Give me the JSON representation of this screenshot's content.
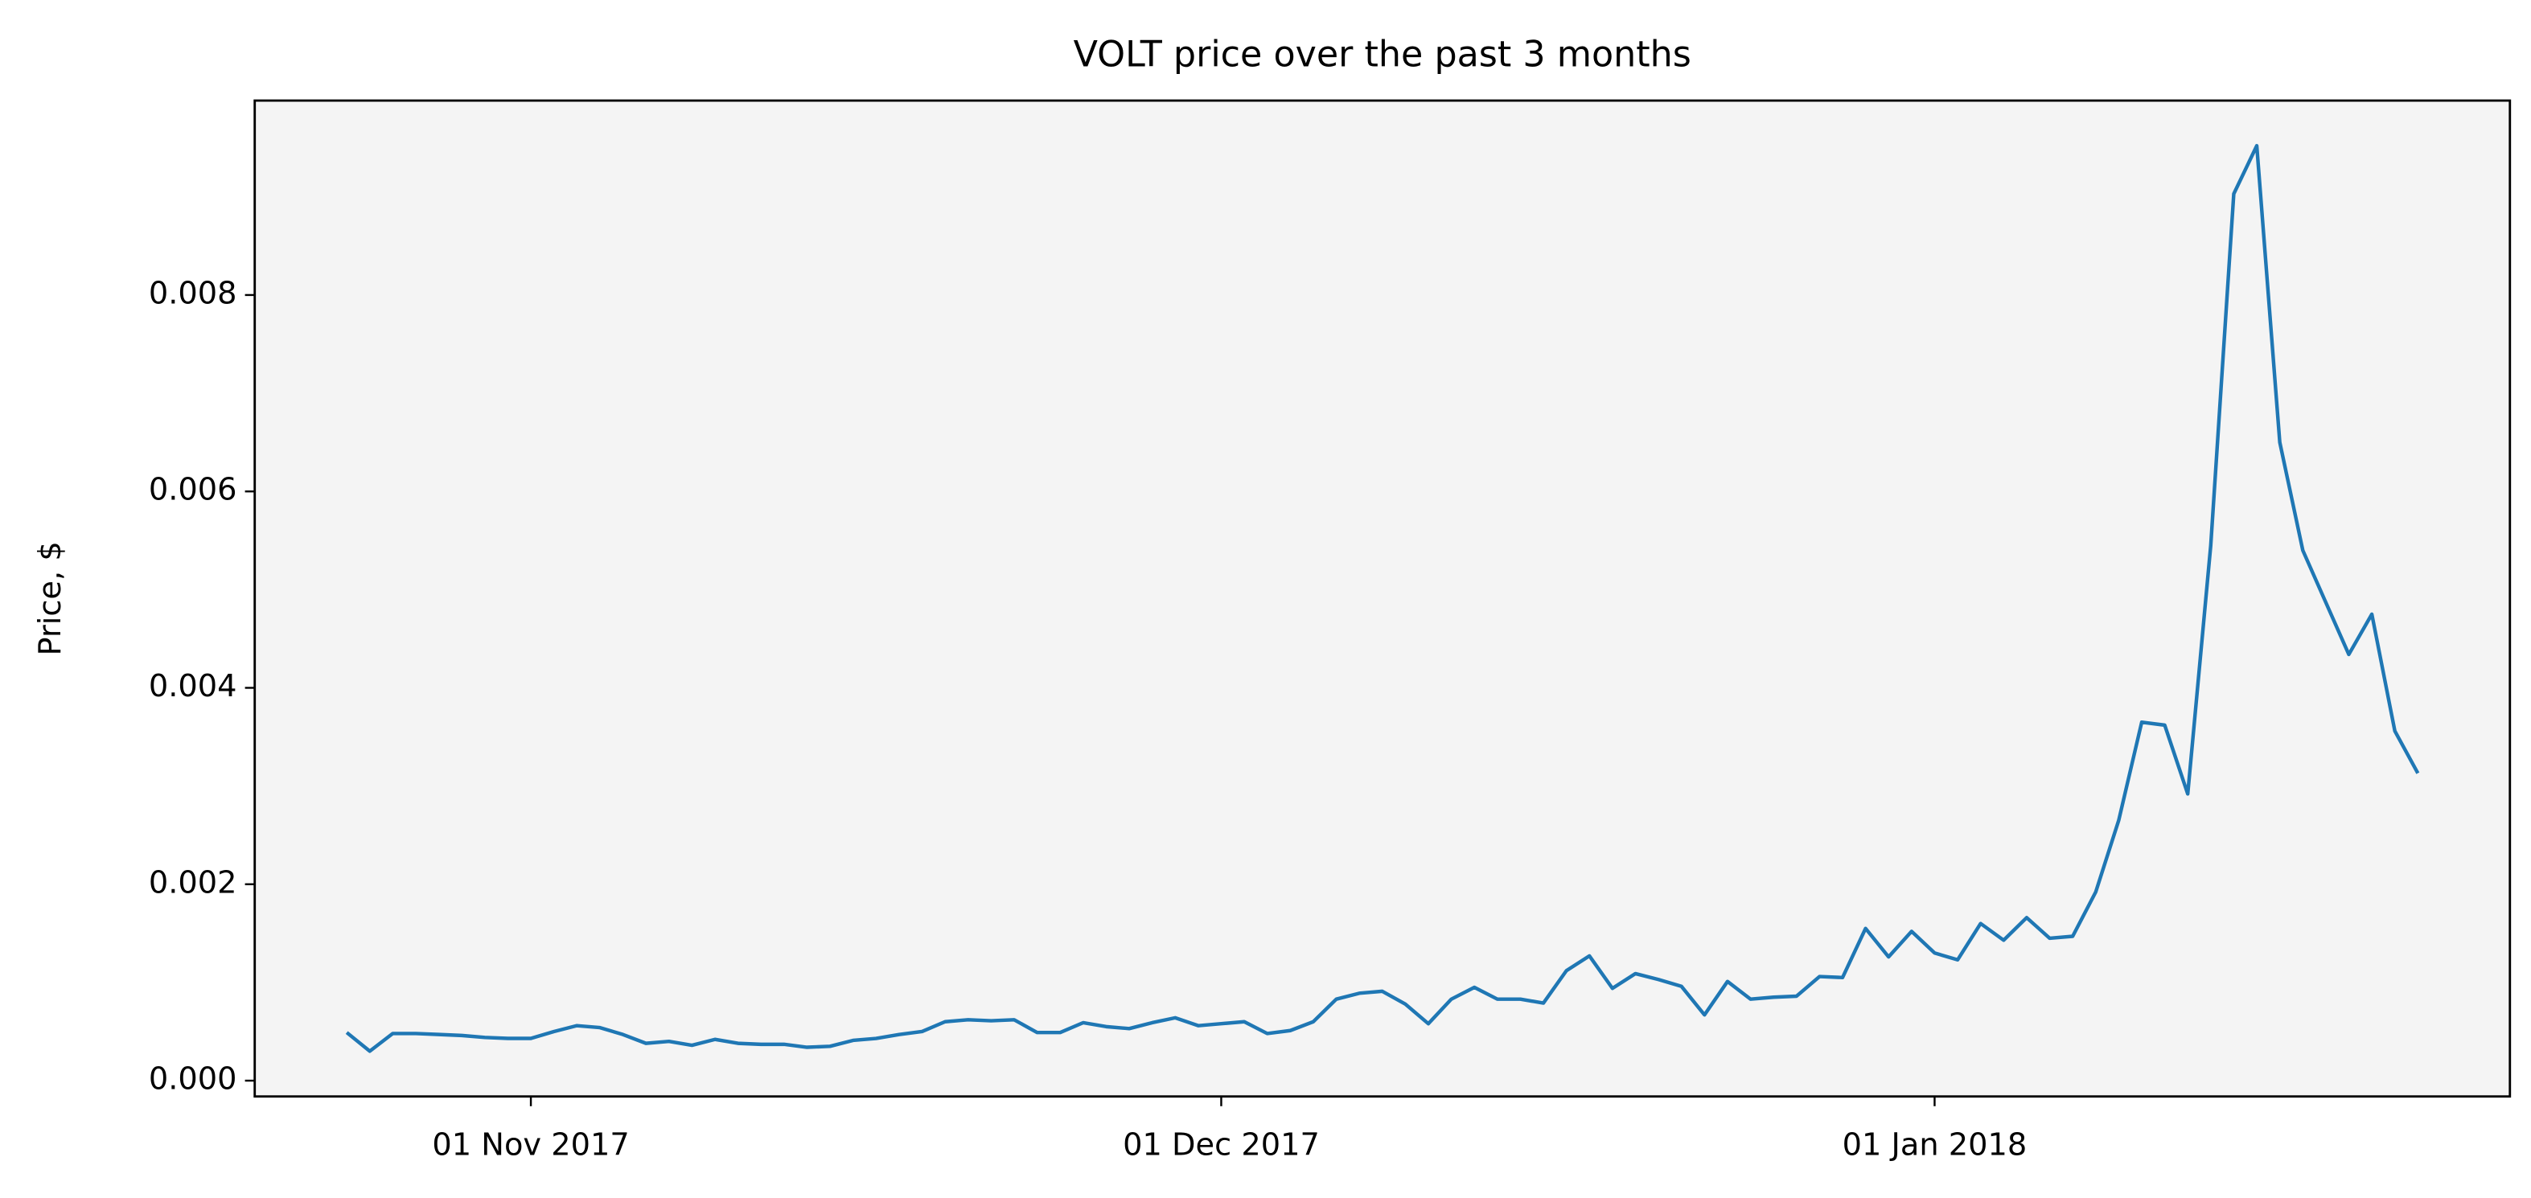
{
  "chart_data": {
    "type": "line",
    "title": "VOLT price over the past 3 months",
    "y_label": "Price, $",
    "color": "#1f77b4",
    "plot_background": "#f4f4f4",
    "x": [
      "2017-10-24",
      "2017-10-25",
      "2017-10-26",
      "2017-10-27",
      "2017-10-28",
      "2017-10-29",
      "2017-10-30",
      "2017-10-31",
      "2017-11-01",
      "2017-11-02",
      "2017-11-03",
      "2017-11-04",
      "2017-11-05",
      "2017-11-06",
      "2017-11-07",
      "2017-11-08",
      "2017-11-09",
      "2017-11-10",
      "2017-11-11",
      "2017-11-12",
      "2017-11-13",
      "2017-11-14",
      "2017-11-15",
      "2017-11-16",
      "2017-11-17",
      "2017-11-18",
      "2017-11-19",
      "2017-11-20",
      "2017-11-21",
      "2017-11-22",
      "2017-11-23",
      "2017-11-24",
      "2017-11-25",
      "2017-11-26",
      "2017-11-27",
      "2017-11-28",
      "2017-11-29",
      "2017-11-30",
      "2017-12-01",
      "2017-12-02",
      "2017-12-03",
      "2017-12-04",
      "2017-12-05",
      "2017-12-06",
      "2017-12-07",
      "2017-12-08",
      "2017-12-09",
      "2017-12-10",
      "2017-12-11",
      "2017-12-12",
      "2017-12-13",
      "2017-12-14",
      "2017-12-15",
      "2017-12-16",
      "2017-12-17",
      "2017-12-18",
      "2017-12-19",
      "2017-12-20",
      "2017-12-21",
      "2017-12-22",
      "2017-12-23",
      "2017-12-24",
      "2017-12-25",
      "2017-12-26",
      "2017-12-27",
      "2017-12-28",
      "2017-12-29",
      "2017-12-30",
      "2017-12-31",
      "2018-01-01",
      "2018-01-02",
      "2018-01-03",
      "2018-01-04",
      "2018-01-05",
      "2018-01-06",
      "2018-01-07",
      "2018-01-08",
      "2018-01-09",
      "2018-01-10",
      "2018-01-11",
      "2018-01-12",
      "2018-01-13",
      "2018-01-14",
      "2018-01-15",
      "2018-01-16",
      "2018-01-17",
      "2018-01-18",
      "2018-01-19",
      "2018-01-20",
      "2018-01-21",
      "2018-01-22"
    ],
    "values": [
      0.00049,
      0.0003,
      0.00048,
      0.00048,
      0.00047,
      0.00046,
      0.00044,
      0.00043,
      0.00043,
      0.0005,
      0.00056,
      0.00054,
      0.00047,
      0.00038,
      0.0004,
      0.00036,
      0.00042,
      0.00038,
      0.00037,
      0.00037,
      0.00034,
      0.00035,
      0.00041,
      0.00043,
      0.00047,
      0.0005,
      0.0006,
      0.00062,
      0.00061,
      0.00062,
      0.00049,
      0.00049,
      0.00059,
      0.00055,
      0.00053,
      0.00059,
      0.00064,
      0.00056,
      0.00058,
      0.0006,
      0.00048,
      0.00051,
      0.0006,
      0.00083,
      0.00089,
      0.00091,
      0.00078,
      0.00058,
      0.00083,
      0.00095,
      0.00083,
      0.00083,
      0.00079,
      0.00112,
      0.00127,
      0.00094,
      0.00109,
      0.00103,
      0.00096,
      0.00067,
      0.00101,
      0.00083,
      0.00085,
      0.00086,
      0.00106,
      0.00105,
      0.00155,
      0.00126,
      0.00152,
      0.0013,
      0.00123,
      0.0016,
      0.00143,
      0.00166,
      0.00145,
      0.00147,
      0.00192,
      0.00265,
      0.00365,
      0.00362,
      0.00292,
      0.00545,
      0.00903,
      0.00952,
      0.0065,
      0.0054,
      0.00487,
      0.00434,
      0.00475,
      0.00356,
      0.00313
    ],
    "xlim": [
      "2017-10-20",
      "2018-01-26"
    ],
    "xticks": [
      {
        "value": "2017-11-01",
        "label": "01 Nov 2017"
      },
      {
        "value": "2017-12-01",
        "label": "01 Dec 2017"
      },
      {
        "value": "2018-01-01",
        "label": "01 Jan 2018"
      }
    ],
    "ylim": [
      -0.000161,
      0.00998
    ],
    "yticks": [
      {
        "value": 0,
        "label": "0.000"
      },
      {
        "value": 0.002,
        "label": "0.002"
      },
      {
        "value": 0.004,
        "label": "0.004"
      },
      {
        "value": 0.006,
        "label": "0.006"
      },
      {
        "value": 0.008,
        "label": "0.008"
      }
    ]
  }
}
